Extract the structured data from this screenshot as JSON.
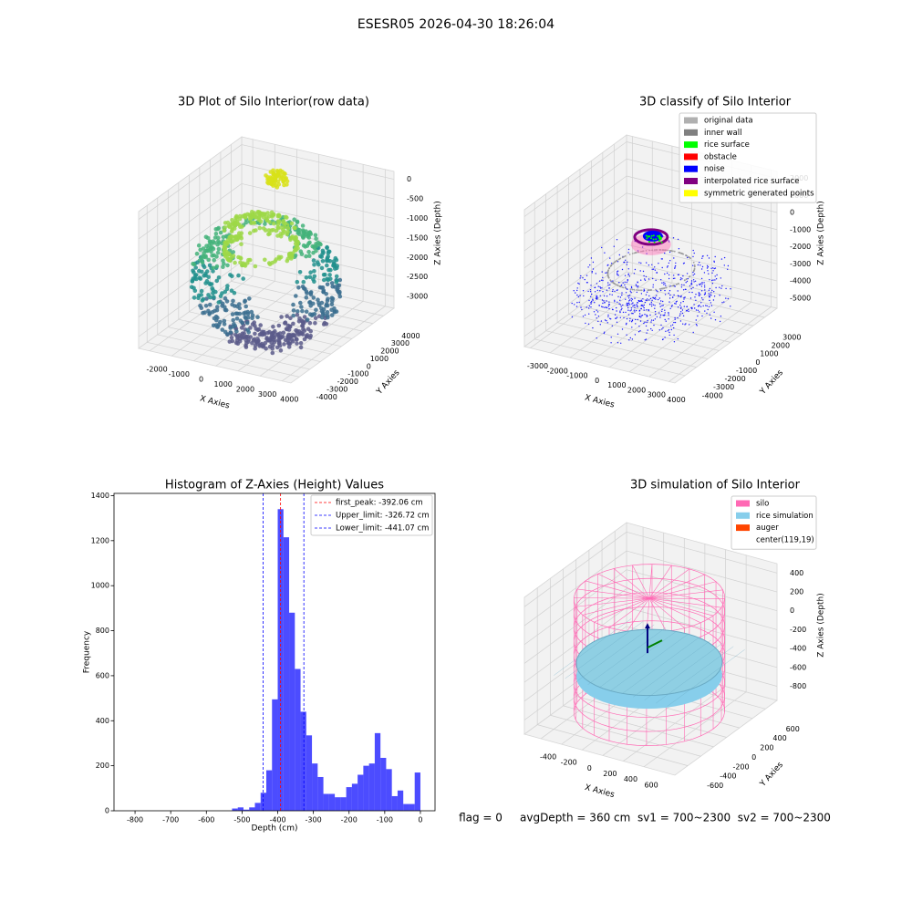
{
  "title": "ESESR05 2026-04-30 18:26:04",
  "footer": "flag = 0     avgDepth = 360 cm  sv1 = 700~2300  sv2 = 700~2300",
  "chart_data": [
    {
      "type": "scatter3d",
      "title": "3D Plot of Silo Interior(row data)",
      "xlabel": "X Axies",
      "ylabel": "Y Axies",
      "zlabel": "Z Axies (Depth)",
      "xlim": [
        -2500,
        4400
      ],
      "ylim": [
        -4800,
        5000
      ],
      "zlim": [
        -3300,
        200
      ],
      "xticks": [
        -2000,
        -1000,
        0,
        1000,
        2000,
        3000,
        4000
      ],
      "yticks": [
        -4000,
        -3000,
        -2000,
        -1000,
        0,
        1000,
        2000,
        3000,
        4000
      ],
      "zticks": [
        0,
        -500,
        -1000,
        -1500,
        -2000,
        -2500,
        -3000
      ]
    },
    {
      "type": "classify3d",
      "title": "3D classify of Silo Interior",
      "xlabel": "X Axies",
      "ylabel": "Y Axies",
      "zlabel": "Z Axies (Depth)",
      "xlim": [
        -3300,
        4300
      ],
      "ylim": [
        -4900,
        4100
      ],
      "zlim": [
        -5600,
        2400
      ],
      "xticks": [
        -3000,
        -2000,
        -1000,
        0,
        1000,
        2000,
        3000,
        4000
      ],
      "yticks": [
        -4000,
        -3000,
        -2000,
        -1000,
        0,
        1000,
        2000,
        3000
      ],
      "zticks": [
        2000,
        1000,
        0,
        -1000,
        -2000,
        -3000,
        -4000,
        -5000
      ],
      "legend": [
        {
          "name": "original data",
          "color": "#b0b0b0"
        },
        {
          "name": "inner wall",
          "color": "#808080"
        },
        {
          "name": "rice surface",
          "color": "#00ff00"
        },
        {
          "name": "obstacle",
          "color": "#ff0000"
        },
        {
          "name": "noise",
          "color": "#0000ff"
        },
        {
          "name": "interpolated rice surface",
          "color": "#800080"
        },
        {
          "name": "symmetric generated points",
          "color": "#ffff00"
        }
      ]
    },
    {
      "type": "histogram",
      "title": "Histogram of Z-Axies (Height) Values",
      "xlabel": "Depth (cm)",
      "ylabel": "Frequency",
      "color": "#0000ff",
      "bins": [
        -528,
        -512,
        -496,
        -480,
        -464,
        -448,
        -432,
        -416,
        -400,
        -384,
        -368,
        -352,
        -336,
        -320,
        -304,
        -288,
        -272,
        -256,
        -240,
        -224,
        -208,
        -192,
        -176,
        -160,
        -144,
        -128,
        -112,
        -96,
        -80,
        -64,
        -48,
        -32,
        -16,
        0
      ],
      "values": [
        10,
        15,
        5,
        15,
        35,
        80,
        180,
        495,
        1340,
        1215,
        880,
        630,
        440,
        335,
        210,
        150,
        75,
        75,
        60,
        60,
        105,
        120,
        160,
        200,
        210,
        345,
        235,
        185,
        65,
        90,
        30,
        30,
        170
      ],
      "xlim": [
        -859,
        41
      ],
      "ylim": [
        0,
        1410
      ],
      "xticks": [
        -800,
        -700,
        -600,
        -500,
        -400,
        -300,
        -200,
        -100,
        0
      ],
      "yticks": [
        0,
        200,
        400,
        600,
        800,
        1000,
        1200,
        1400
      ],
      "vlines": [
        {
          "value": -392.06,
          "label": "first_peak: -392.06 cm",
          "color": "#ff0000"
        },
        {
          "value": -326.72,
          "label": "Upper_limit: -326.72 cm",
          "color": "#0000ff"
        },
        {
          "value": -441.07,
          "label": "Lower_limit: -441.07 cm",
          "color": "#0000ff"
        }
      ]
    },
    {
      "type": "simulation3d",
      "title": "3D simulation of Silo Interior",
      "xlabel": "X Axies",
      "ylabel": "Y Axies",
      "zlabel": "Z Axies (Depth)",
      "xlim": [
        -560,
        900
      ],
      "ylim": [
        -800,
        780
      ],
      "zlim": [
        -950,
        500
      ],
      "xticks": [
        -400,
        -200,
        0,
        200,
        400,
        600
      ],
      "yticks": [
        -600,
        -400,
        -200,
        0,
        200,
        400,
        600
      ],
      "zticks": [
        400,
        200,
        0,
        -200,
        -400,
        -600,
        -800
      ],
      "legend": [
        {
          "name": "silo",
          "color": "#ff69b4"
        },
        {
          "name": "rice simulation",
          "color": "#87ceeb"
        },
        {
          "name": "auger",
          "color": "#ff4500"
        },
        {
          "name": "center(119,19)",
          "color": "#ffffff"
        }
      ]
    }
  ]
}
